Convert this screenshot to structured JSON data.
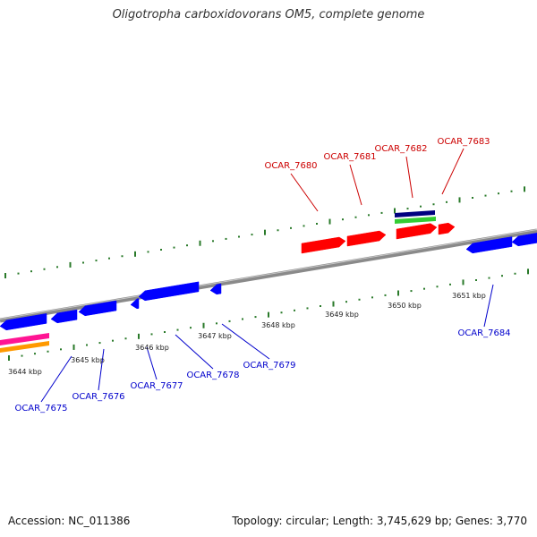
{
  "title": "Oligotropha carboxidovorans OM5, complete genome",
  "footer": {
    "accession": "Accession: NC_011386",
    "topology": "Topology: circular; Length: 3,745,629 bp; Genes: 3,770"
  },
  "colors": {
    "forward_gene": "#ff0000",
    "reverse_gene": "#0000ff",
    "forward_label": "#cc0000",
    "reverse_label": "#0000cc",
    "backbone": "#888888",
    "ticks": "#2a7a2a",
    "track_navy": "#000080",
    "track_green": "#33cc33",
    "track_magenta": "#ff1493",
    "track_orange": "#ff9900"
  },
  "scale_labels": [
    "3644 kbp",
    "3645 kbp",
    "3646 kbp",
    "3647 kbp",
    "3648 kbp",
    "3649 kbp",
    "3650 kbp",
    "3651 kbp"
  ],
  "forward_genes": [
    "OCAR_7680",
    "OCAR_7681",
    "OCAR_7682",
    "OCAR_7683"
  ],
  "reverse_genes": [
    "OCAR_7675",
    "OCAR_7676",
    "OCAR_7677",
    "OCAR_7678",
    "OCAR_7679",
    "OCAR_7684"
  ]
}
